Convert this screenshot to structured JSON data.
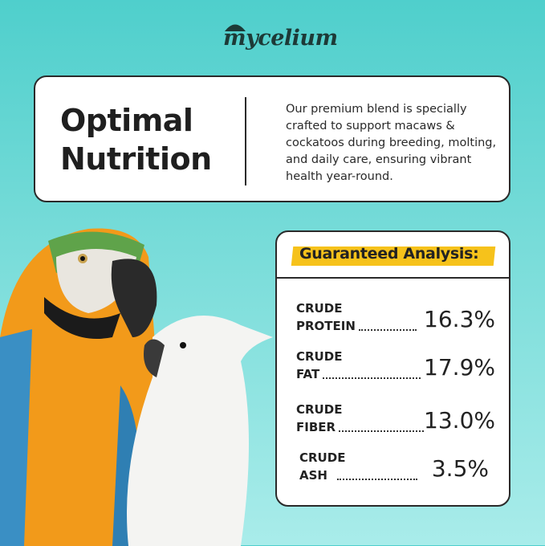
{
  "brand": {
    "logo": "mycelium"
  },
  "intro": {
    "title_line1": "Optimal",
    "title_line2": "Nutrition",
    "description": "Our premium blend is specially crafted to support macaws & cockatoos during breeding, molting, and daily care, ensuring vibrant health year-round."
  },
  "analysis": {
    "heading": "Guaranteed Analysis:",
    "highlight_color": "#f6c21b",
    "rows": [
      {
        "line1": "CRUDE",
        "line2": "PROTEIN",
        "value": "16.3%"
      },
      {
        "line1": "CRUDE",
        "line2": "FAT",
        "value": "17.9%"
      },
      {
        "line1": "CRUDE",
        "line2": "FIBER",
        "value": "13.0%"
      },
      {
        "line1": "CRUDE",
        "line2": "ASH",
        "value": "3.5%"
      }
    ]
  }
}
